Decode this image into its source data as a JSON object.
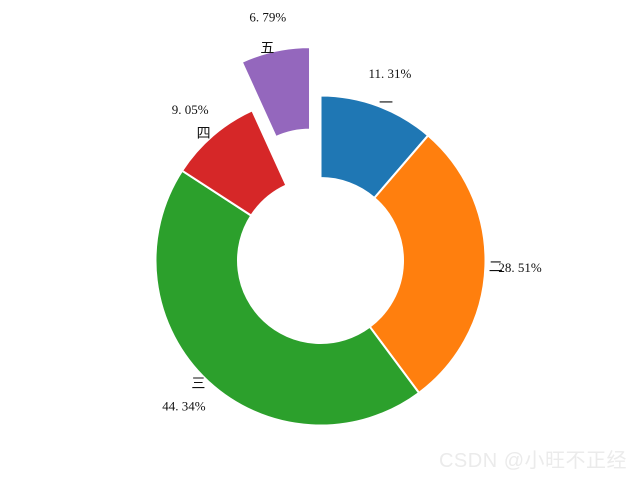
{
  "chart_data": {
    "type": "pie",
    "subtype": "donut",
    "title": "",
    "categories": [
      "一",
      "二",
      "三",
      "四",
      "五"
    ],
    "values": [
      11.31,
      28.51,
      44.34,
      9.05,
      6.79
    ],
    "value_unit": "%",
    "pct_labels": [
      "11. 31%",
      "28. 51%",
      "44. 34%",
      "9. 05%",
      "6. 79%"
    ],
    "colors": [
      "#1f77b4",
      "#ff7f0e",
      "#2ca02c",
      "#d62728",
      "#9467bd"
    ],
    "explode": [
      0,
      0,
      0,
      0,
      0.3
    ],
    "start_angle_deg": 90,
    "direction": "clockwise",
    "donut_hole_ratio": 0.5,
    "slice_edge_color": "#ffffff",
    "legend": "none",
    "background": "#ffffff",
    "label_color": "#111111"
  },
  "watermark": {
    "text": "CSDN @小旺不正经",
    "color": "#ebebeb"
  }
}
